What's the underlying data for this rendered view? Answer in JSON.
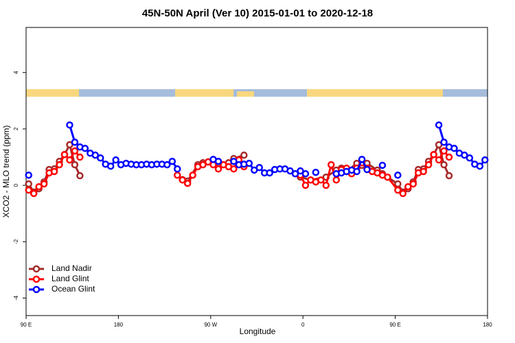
{
  "chart_data": {
    "type": "line",
    "title": "45N-50N April (Ver 10)   2015-01-01 to 2020-12-18",
    "x_label": "Longitude",
    "y_label": "XCO2 - MLO trend (ppm)",
    "xlim": [
      90,
      540
    ],
    "ylim": [
      -4.62,
      5.6
    ],
    "xticks": [
      {
        "value": 90,
        "label": "90 E"
      },
      180,
      {
        "value": 270,
        "label": "90 W"
      },
      {
        "value": 360,
        "label": "0"
      },
      {
        "value": 450,
        "label": "90 E"
      },
      {
        "value": 540,
        "label": "180"
      }
    ],
    "yticks": [
      -4,
      -2,
      0,
      2,
      4
    ],
    "legend": "bottomleft",
    "series": [
      {
        "name": "Land Nadir",
        "color": "#a52a2a",
        "x": [
          92.5,
          97.5,
          102.5,
          107.5,
          112.5,
          117.5,
          122.5,
          127.5,
          132.5,
          137.5,
          142.5,
          190,
          242.5,
          247.5,
          257.5,
          262.5,
          267.5,
          277.5,
          287.5,
          292.5,
          302.5,
          330,
          357.5,
          367.5,
          382.5,
          392.5,
          397.5,
          402.5,
          412.5,
          417.5,
          422.5,
          432.5,
          437.5,
          442.5,
          452.5,
          457.5,
          462.5,
          467.5,
          472.5,
          477.5,
          482.5,
          487.5,
          492.5,
          497.5,
          502.5
        ],
        "values": [
          0.05,
          -0.24,
          -0.12,
          0.12,
          0.56,
          0.58,
          0.85,
          1.09,
          1.44,
          0.73,
          0.34,
          null,
          0.2,
          0.15,
          0.73,
          0.8,
          0.83,
          0.78,
          0.8,
          0.95,
          1.07,
          null,
          0.29,
          0.19,
          0.29,
          0.54,
          0.61,
          0.49,
          0.78,
          0.71,
          0.78,
          0.54,
          0.41,
          0.29,
          0.05,
          -0.24,
          -0.12,
          0.12,
          0.56,
          0.58,
          0.85,
          1.09,
          1.44,
          0.73,
          0.34
        ]
      },
      {
        "name": "Land Glint",
        "color": "#ff0000",
        "x": [
          92.5,
          97.5,
          102.5,
          107.5,
          112.5,
          117.5,
          122.5,
          127.5,
          132.5,
          137.5,
          142.5,
          190,
          237.5,
          242.5,
          247.5,
          252.5,
          257.5,
          262.5,
          267.5,
          272.5,
          277.5,
          282.5,
          287.5,
          292.5,
          297.5,
          302.5,
          330,
          357.5,
          362.5,
          367.5,
          372.5,
          377.5,
          382.5,
          387.5,
          392.5,
          397.5,
          402.5,
          407.5,
          412.5,
          417.5,
          422.5,
          427.5,
          432.5,
          437.5,
          442.5,
          452.5,
          457.5,
          462.5,
          467.5,
          472.5,
          477.5,
          482.5,
          487.5,
          492.5,
          497.5,
          502.5
        ],
        "values": [
          -0.17,
          -0.29,
          -0.05,
          0.05,
          0.44,
          0.49,
          0.73,
          1.09,
          0.9,
          1.22,
          1.0,
          null,
          0.36,
          0.19,
          0.07,
          0.36,
          0.66,
          0.73,
          0.83,
          0.73,
          0.58,
          0.73,
          0.66,
          0.58,
          0.9,
          0.66,
          null,
          0.36,
          0,
          0.19,
          0.12,
          0.19,
          0,
          0.73,
          0.19,
          0.56,
          0.61,
          0.41,
          0.61,
          0.8,
          0.61,
          0.49,
          0.44,
          0.36,
          0.29,
          -0.17,
          -0.29,
          -0.05,
          0.05,
          0.44,
          0.49,
          0.73,
          1.09,
          0.9,
          1.22,
          1.0
        ]
      },
      {
        "name": "Ocean Glint",
        "color": "#0000ff",
        "x": [
          92.5,
          110,
          132.5,
          137.5,
          142.5,
          147.5,
          152.5,
          157.5,
          162.5,
          167.5,
          172.5,
          177.5,
          182.5,
          187.5,
          192.5,
          197.5,
          202.5,
          207.5,
          212.5,
          217.5,
          222.5,
          227.5,
          232.5,
          237.5,
          255,
          272.5,
          277.5,
          285,
          292.5,
          297.5,
          302.5,
          307.5,
          312.5,
          317.5,
          322.5,
          327.5,
          332.5,
          337.5,
          342.5,
          347.5,
          352.5,
          357.5,
          362.5,
          367.5,
          372.5,
          382.5,
          392.5,
          397.5,
          402.5,
          407.5,
          412.5,
          417.5,
          422.5,
          430,
          437.5,
          445,
          452.5,
          470,
          492.5,
          497.5,
          502.5,
          507.5,
          512.5,
          517.5,
          522.5,
          527.5,
          532.5,
          537.5
        ],
        "values": [
          0.36,
          null,
          2.14,
          1.53,
          1.36,
          1.31,
          1.14,
          1.07,
          0.97,
          0.75,
          0.68,
          0.9,
          0.73,
          0.78,
          0.75,
          0.73,
          0.73,
          0.75,
          0.73,
          0.75,
          0.75,
          0.73,
          0.85,
          0.58,
          null,
          0.92,
          0.85,
          null,
          0.85,
          0.73,
          0.75,
          0.78,
          0.54,
          0.63,
          0.44,
          0.44,
          0.56,
          0.58,
          0.58,
          0.51,
          0.41,
          0.51,
          0.41,
          null,
          0.46,
          null,
          0.41,
          0.44,
          0.49,
          0.54,
          0.49,
          0.92,
          0.56,
          null,
          0.71,
          null,
          0.36,
          null,
          2.14,
          1.53,
          1.36,
          1.31,
          1.14,
          1.07,
          0.97,
          0.75,
          0.68,
          0.9
        ]
      }
    ]
  }
}
